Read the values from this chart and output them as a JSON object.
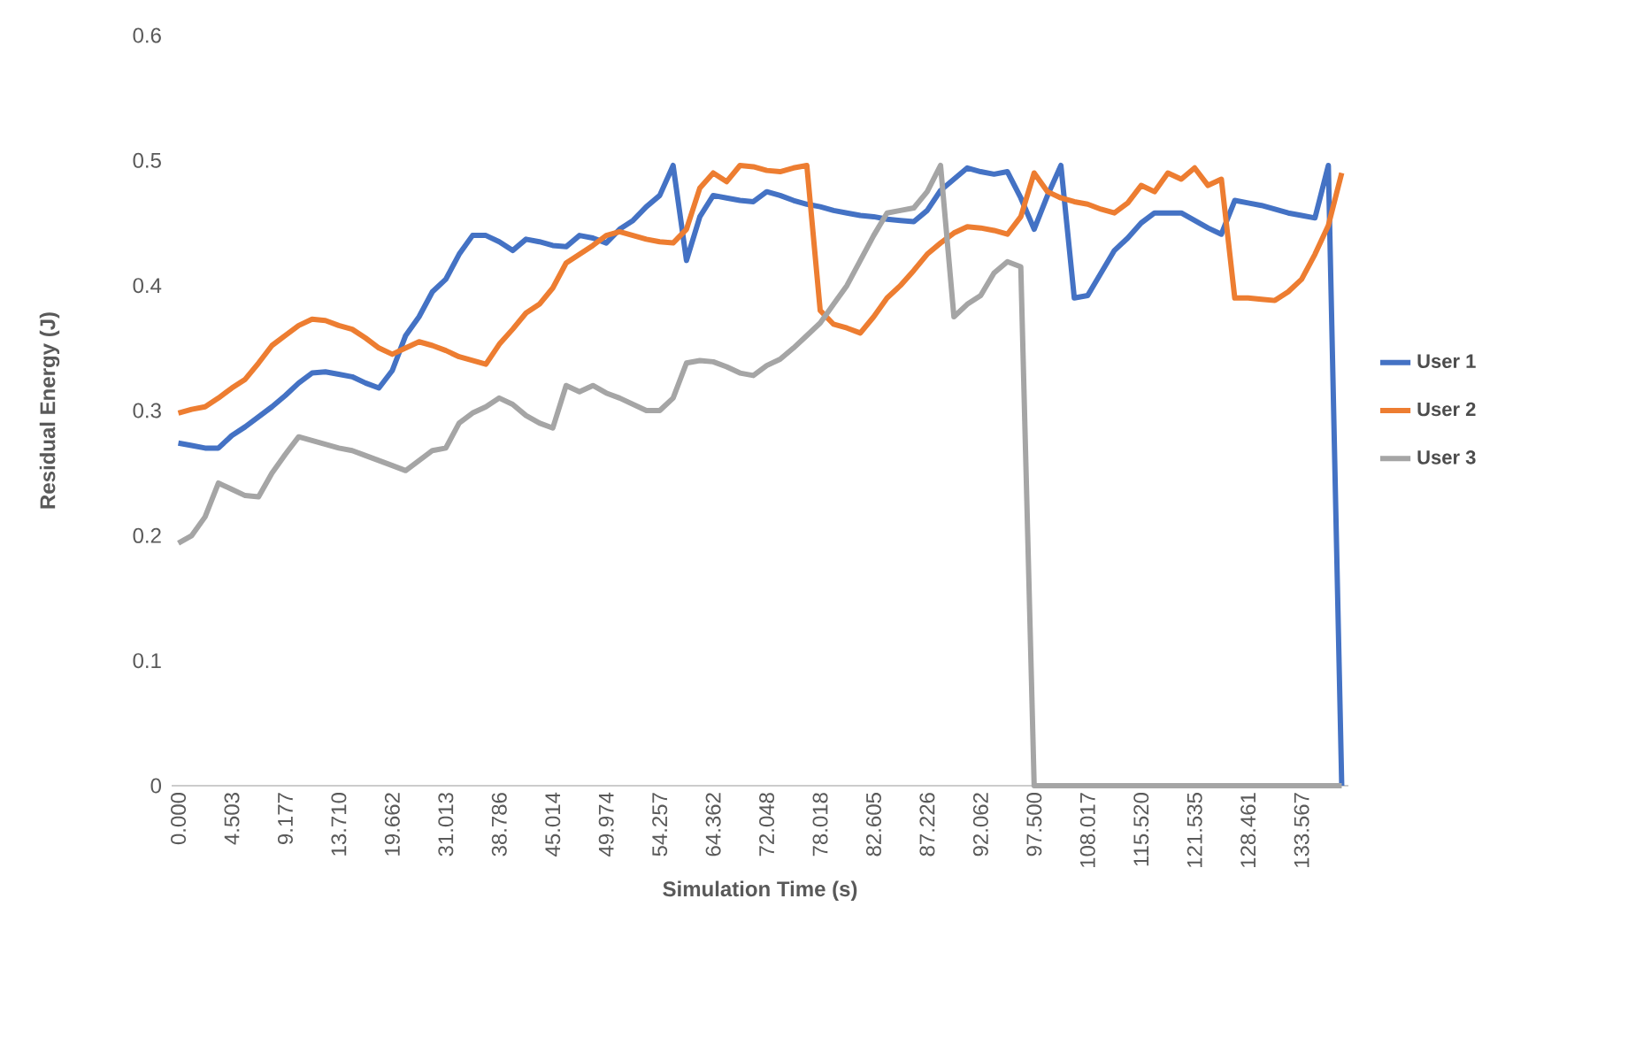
{
  "chart_data": {
    "type": "line",
    "xlabel": "Simulation Time (s)",
    "ylabel": "Residual Energy (J)",
    "categories": [
      "0.000",
      null,
      null,
      null,
      "4.503",
      null,
      null,
      null,
      "9.177",
      null,
      null,
      null,
      "13.710",
      null,
      null,
      null,
      "19.662",
      null,
      null,
      null,
      "31.013",
      null,
      null,
      null,
      "38.786",
      null,
      null,
      null,
      "45.014",
      null,
      null,
      null,
      "49.974",
      null,
      null,
      null,
      "54.257",
      null,
      null,
      null,
      "64.362",
      null,
      null,
      null,
      "72.048",
      null,
      null,
      null,
      "78.018",
      null,
      null,
      null,
      "82.605",
      null,
      null,
      null,
      "87.226",
      null,
      null,
      null,
      "92.062",
      null,
      null,
      null,
      "97.500",
      null,
      null,
      null,
      "108.017",
      null,
      null,
      null,
      "115.520",
      null,
      null,
      null,
      "121.535",
      null,
      null,
      null,
      "128.461",
      null,
      null,
      null,
      "133.567",
      null,
      null,
      null
    ],
    "series": [
      {
        "name": "User 1",
        "color": "#4472c4",
        "values": [
          0.274,
          0.272,
          0.27,
          0.27,
          0.28,
          0.287,
          0.295,
          0.303,
          0.312,
          0.322,
          0.33,
          0.331,
          0.329,
          0.327,
          0.322,
          0.318,
          0.332,
          0.36,
          0.375,
          0.395,
          0.405,
          0.425,
          0.44,
          0.44,
          0.435,
          0.428,
          0.437,
          0.435,
          0.432,
          0.431,
          0.44,
          0.438,
          0.434,
          0.445,
          0.452,
          0.463,
          0.472,
          0.496,
          0.42,
          0.455,
          0.472,
          0.47,
          0.468,
          0.467,
          0.475,
          0.472,
          0.468,
          0.465,
          0.463,
          0.46,
          0.458,
          0.456,
          0.455,
          0.453,
          0.452,
          0.451,
          0.46,
          0.476,
          0.485,
          0.494,
          0.491,
          0.489,
          0.491,
          0.47,
          0.445,
          0.472,
          0.496,
          0.39,
          0.392,
          0.41,
          0.428,
          0.438,
          0.45,
          0.458,
          0.458,
          0.458,
          0.452,
          0.446,
          0.441,
          0.468,
          0.466,
          0.464,
          0.461,
          0.458,
          0.456,
          0.454,
          0.496,
          0
        ]
      },
      {
        "name": "User 2",
        "color": "#ed7d31",
        "values": [
          0.298,
          0.301,
          0.303,
          0.31,
          0.318,
          0.325,
          0.338,
          0.352,
          0.36,
          0.368,
          0.373,
          0.372,
          0.368,
          0.365,
          0.358,
          0.35,
          0.345,
          0.35,
          0.355,
          0.352,
          0.348,
          0.343,
          0.34,
          0.337,
          0.353,
          0.365,
          0.378,
          0.385,
          0.398,
          0.418,
          0.425,
          0.432,
          0.44,
          0.443,
          0.44,
          0.437,
          0.435,
          0.434,
          0.445,
          0.478,
          0.49,
          0.483,
          0.496,
          0.495,
          0.492,
          0.491,
          0.494,
          0.496,
          0.38,
          0.369,
          0.366,
          0.362,
          0.375,
          0.39,
          0.4,
          0.412,
          0.425,
          0.434,
          0.442,
          0.447,
          0.446,
          0.444,
          0.441,
          0.455,
          0.49,
          0.475,
          0.47,
          0.467,
          0.465,
          0.461,
          0.458,
          0.466,
          0.48,
          0.475,
          0.49,
          0.485,
          0.494,
          0.48,
          0.485,
          0.39,
          0.39,
          0.389,
          0.388,
          0.395,
          0.405,
          0.425,
          0.448,
          0.49
        ]
      },
      {
        "name": "User 3",
        "color": "#a5a5a5",
        "values": [
          0.194,
          0.2,
          0.215,
          0.242,
          0.237,
          0.232,
          0.231,
          0.25,
          0.265,
          0.279,
          0.276,
          0.273,
          0.27,
          0.268,
          0.264,
          0.26,
          0.256,
          0.252,
          0.26,
          0.268,
          0.27,
          0.29,
          0.298,
          0.303,
          0.31,
          0.305,
          0.296,
          0.29,
          0.286,
          0.32,
          0.315,
          0.32,
          0.314,
          0.31,
          0.305,
          0.3,
          0.3,
          0.31,
          0.338,
          0.34,
          0.339,
          0.335,
          0.33,
          0.328,
          0.336,
          0.341,
          0.35,
          0.36,
          0.37,
          0.385,
          0.4,
          0.42,
          0.44,
          0.458,
          0.46,
          0.462,
          0.475,
          0.496,
          0.375,
          0.385,
          0.392,
          0.41,
          0.419,
          0.415,
          0,
          0,
          0,
          0,
          0,
          0,
          0,
          0,
          0,
          0,
          0,
          0,
          0,
          0,
          0,
          0,
          0,
          0,
          0,
          0,
          0,
          0,
          0,
          0
        ]
      }
    ],
    "ylim": [
      0,
      0.6
    ],
    "yticks": [
      0,
      0.1,
      0.2,
      0.3,
      0.4,
      0.5,
      0.6
    ],
    "grid": false,
    "legend": "right",
    "marker": "none",
    "line_style": "solid"
  }
}
